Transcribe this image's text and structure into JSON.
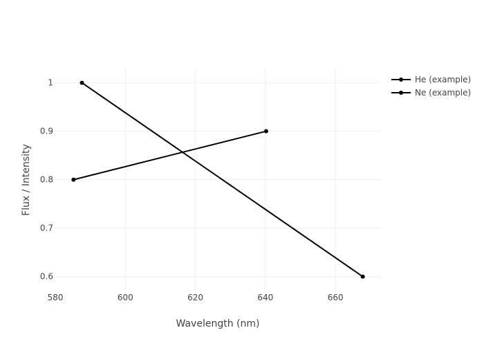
{
  "chart_data": {
    "type": "line",
    "title": "",
    "xlabel": "Wavelength (nm)",
    "ylabel": "Flux / Intensity",
    "xlim": [
      580,
      673
    ],
    "ylim": [
      0.571,
      1.028
    ],
    "x_ticks": [
      580,
      600,
      620,
      640,
      660
    ],
    "y_ticks": [
      0.6,
      0.7,
      0.8,
      0.9,
      1
    ],
    "grid": true,
    "legend_position": "top-right",
    "series": [
      {
        "name": "He (example)",
        "color": "#000000",
        "x": [
          587.6,
          667.8
        ],
        "y": [
          1.0,
          0.6
        ]
      },
      {
        "name": "Ne (example)",
        "color": "#000000",
        "x": [
          585.2,
          640.2
        ],
        "y": [
          0.8,
          0.9
        ]
      }
    ]
  }
}
